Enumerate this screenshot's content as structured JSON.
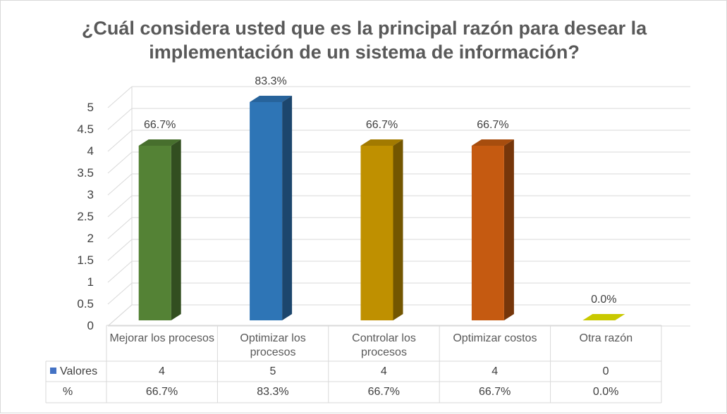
{
  "chart_data": {
    "type": "bar",
    "title": "¿Cuál considera usted que es la principal razón para desear la implementación de un sistema de información?",
    "categories": [
      "Mejorar los procesos",
      "Optimizar los procesos",
      "Controlar los procesos",
      "Optimizar costos",
      "Otra razón"
    ],
    "series": [
      {
        "name": "Valores",
        "values": [
          4,
          5,
          4,
          4,
          0
        ]
      },
      {
        "name": "%",
        "values": [
          "66.7%",
          "83.3%",
          "66.7%",
          "66.7%",
          "0.0%"
        ]
      }
    ],
    "data_labels": [
      "66.7%",
      "83.3%",
      "66.7%",
      "66.7%",
      "0.0%"
    ],
    "bar_colors": [
      "#548235",
      "#2e75b6",
      "#bf9000",
      "#c55a11",
      "#c9c900"
    ],
    "ylim": [
      0,
      5
    ],
    "yticks": [
      "0",
      "0.5",
      "1",
      "1.5",
      "2",
      "2.5",
      "3",
      "3.5",
      "4",
      "4.5",
      "5"
    ],
    "grid": true,
    "legend_color": "#4472c4"
  }
}
